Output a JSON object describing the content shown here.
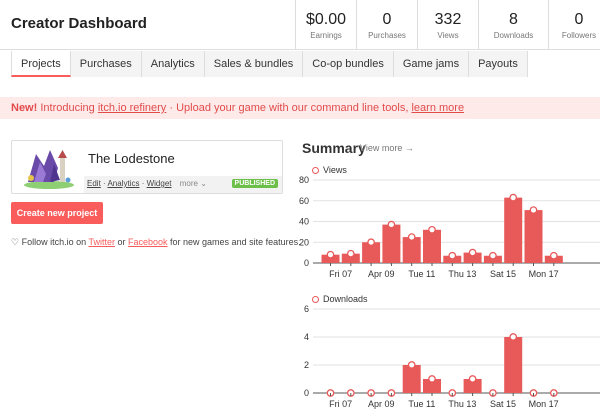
{
  "header": {
    "title": "Creator Dashboard",
    "stats": [
      {
        "value": "$0.00",
        "label": "Earnings"
      },
      {
        "value": "0",
        "label": "Purchases"
      },
      {
        "value": "332",
        "label": "Views"
      },
      {
        "value": "8",
        "label": "Downloads"
      },
      {
        "value": "0",
        "label": "Followers"
      }
    ]
  },
  "tabs": [
    "Projects",
    "Purchases",
    "Analytics",
    "Sales & bundles",
    "Co-op bundles",
    "Game jams",
    "Payouts"
  ],
  "banner": {
    "new": "New!",
    "text1": " Introducing ",
    "link1": "itch.io refinery",
    "text2": " · Upload your game with our command line tools, ",
    "link2": "learn more"
  },
  "project": {
    "title": "The Lodestone",
    "links": [
      "Edit",
      "Analytics",
      "Widget"
    ],
    "more": "more",
    "status": "PUBLISHED"
  },
  "create_button": "Create new project",
  "follow": {
    "text1": "Follow itch.io on ",
    "twitter": "Twitter",
    "text2": " or ",
    "facebook": "Facebook",
    "text3": " for new games and site features."
  },
  "summary": {
    "title": "Summary",
    "view_more": "View more →"
  },
  "colors": {
    "accent": "#fa5c5c",
    "bar": "#e85a5a",
    "published": "#6cc04a"
  },
  "chart_data": [
    {
      "type": "bar",
      "title": "Views",
      "x_tick_labels": [
        "Fri 07",
        "Apr 09",
        "Tue 11",
        "Thu 13",
        "Sat 15",
        "Mon 17"
      ],
      "values": [
        8,
        9,
        20,
        37,
        25,
        32,
        7,
        10,
        7,
        63,
        51,
        7
      ],
      "y_ticks": [
        0,
        20,
        40,
        60,
        80
      ],
      "ylim": [
        0,
        80
      ]
    },
    {
      "type": "bar",
      "title": "Downloads",
      "x_tick_labels": [
        "Fri 07",
        "Apr 09",
        "Tue 11",
        "Thu 13",
        "Sat 15",
        "Mon 17"
      ],
      "values": [
        0,
        0,
        0,
        0,
        2,
        1,
        0,
        1,
        0,
        4,
        0,
        0
      ],
      "y_ticks": [
        0,
        2,
        4,
        6
      ],
      "ylim": [
        0,
        6
      ]
    }
  ]
}
